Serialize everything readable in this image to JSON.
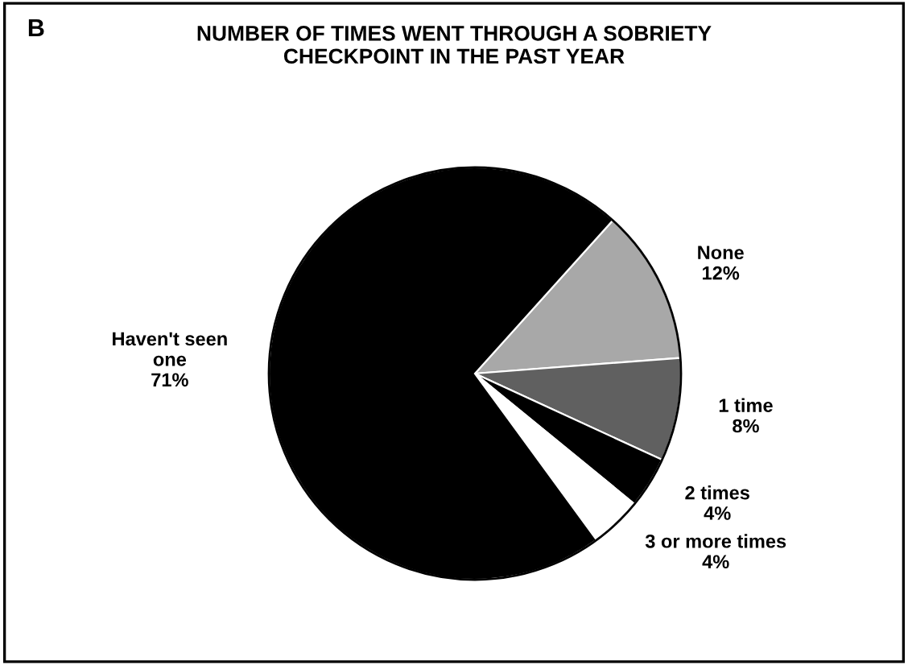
{
  "chart_data": {
    "type": "pie",
    "title": "NUMBER OF TIMES WENT THROUGH A SOBRIETY\nCHECKPOINT IN THE PAST YEAR",
    "annotations": [
      "B"
    ],
    "categories": [
      "None",
      "1 time",
      "2 times",
      "3 or more times",
      "Haven't seen\none"
    ],
    "values": [
      12,
      8,
      4,
      4,
      71
    ],
    "value_labels": [
      "12%",
      "8%",
      "4%",
      "4%",
      "71%"
    ],
    "colors": [
      "#a8a8a8",
      "#606060",
      "#000000",
      "#ffffff",
      "#000000"
    ],
    "legend": false
  }
}
